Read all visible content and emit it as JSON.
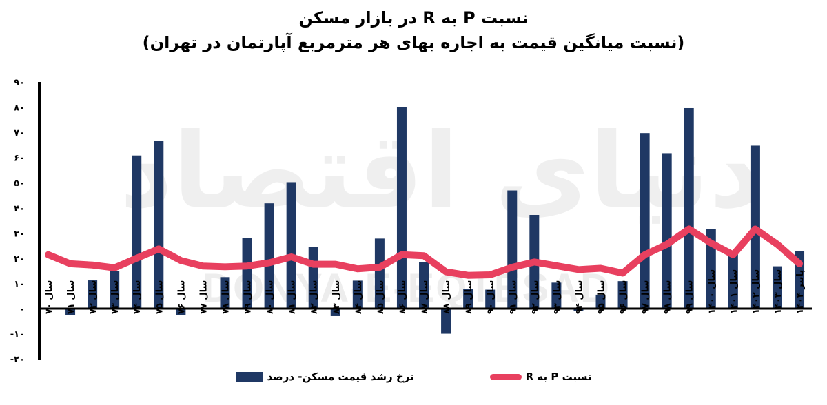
{
  "title": "نسبت P به R در بازار مسکن",
  "subtitle": "(نسبت میانگین قیمت به اجاره بهای هر مترمربع آپارتمان در تهران)",
  "watermark": {
    "latin": "DONYA-E-EQTESAD",
    "persian": "دنیای اقتصاد"
  },
  "colors": {
    "bar": "#1f3864",
    "line": "#e8405f",
    "axis": "#000000",
    "watermark": "#ededed"
  },
  "legend": {
    "line_label": "نسبت P به R",
    "bar_label": "نرخ رشد قیمت مسکن- درصد"
  },
  "chart_data": {
    "type": "bar+line",
    "title": "نسبت P به R در بازار مسکن",
    "subtitle": "(نسبت میانگین قیمت به اجاره بهای هر مترمربع آپارتمان در تهران)",
    "xlabel": "",
    "ylabel": "",
    "ylim": [
      -20,
      90
    ],
    "yticks": [
      90,
      80,
      70,
      60,
      50,
      40,
      30,
      20,
      10,
      0,
      -10,
      -20
    ],
    "ytick_labels": [
      "۹۰",
      "۸۰",
      "۷۰",
      "۶۰",
      "۵۰",
      "۴۰",
      "۳۰",
      "۲۰",
      "۱۰",
      "۰",
      "-۱۰",
      "-۲۰"
    ],
    "grid": false,
    "legend_position": "bottom",
    "categories": [
      "سال ۷۰",
      "سال ۷۱",
      "سال ۷۲",
      "سال ۷۳",
      "سال ۷۴",
      "سال ۷۵",
      "سال ۷۶",
      "سال ۷۷",
      "سال ۷۸",
      "سال ۷۹",
      "سال ۸۰",
      "سال ۸۱",
      "سال ۸۲",
      "سال ۸۳",
      "سال ۸۴",
      "سال ۸۵",
      "سال ۸۶",
      "سال ۸۷",
      "سال ۸۸",
      "سال ۸۹",
      "سال ۹۰",
      "سال ۹۱",
      "سال ۹۲",
      "سال ۹۳",
      "سال ۹۴",
      "سال ۹۵",
      "سال ۹۶",
      "سال ۹۷",
      "سال ۹۸",
      "سال ۹۹",
      "سال ۱۴۰۰",
      "سال ۱۴۰۱",
      "سال ۱۴۰۲",
      "سال ۱۴۰۳",
      "پاییز ۱۴۰۴"
    ],
    "series": [
      {
        "name": "نرخ رشد قیمت مسکن- درصد",
        "type": "bar",
        "values": [
          0,
          -2.7,
          11.2,
          15,
          60.8,
          66.6,
          -2.7,
          0,
          12.5,
          28,
          41.8,
          50.2,
          24.5,
          -3,
          11.1,
          27.8,
          80,
          18.5,
          -10,
          7.9,
          7.5,
          46.9,
          37.2,
          10.3,
          -1,
          5.5,
          10.9,
          69.7,
          61.7,
          79.6,
          31.5,
          22.3,
          64.7,
          16.8,
          22.8
        ]
      },
      {
        "name": "نسبت P به R",
        "type": "line",
        "values": [
          21.4,
          17.8,
          17.3,
          16.2,
          20,
          23.7,
          19.1,
          16.9,
          16.6,
          16.9,
          18.2,
          20.5,
          17.6,
          17.6,
          15.8,
          16.4,
          21.4,
          21,
          14.6,
          13.2,
          13.4,
          16.4,
          18.5,
          17,
          15.5,
          16,
          14.1,
          21.4,
          25.5,
          31.6,
          26,
          21.4,
          31.6,
          25.5,
          17.8
        ]
      }
    ]
  }
}
